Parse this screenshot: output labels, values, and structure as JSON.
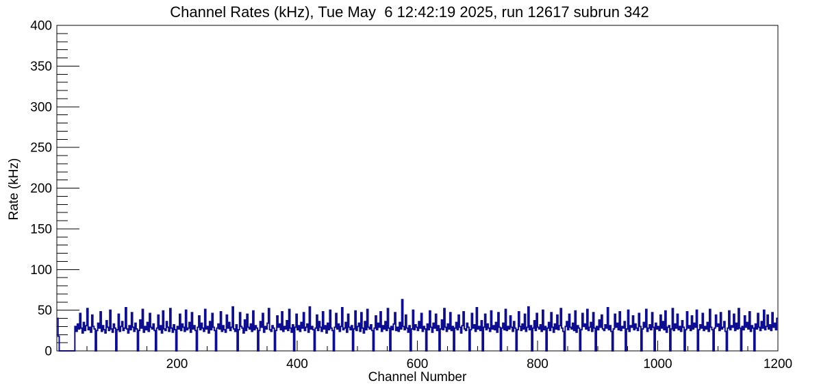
{
  "page": {
    "background": "#ffffff"
  },
  "chart_data": {
    "type": "histogram",
    "title": "Channel Rates (kHz), Tue May  6 12:42:19 2025, run 12617 subrun 342",
    "datetime": "Tue May  6 12:42:19 2025",
    "run": "12617",
    "subrun": "342",
    "xlabel": "Channel Number",
    "ylabel": "Rate (kHz)",
    "xlim": [
      0,
      1200
    ],
    "ylim": [
      0,
      400
    ],
    "x_major_ticks": [
      200,
      400,
      600,
      800,
      1000,
      1200
    ],
    "x_minor_step": 50,
    "y_major_ticks": [
      0,
      50,
      100,
      150,
      200,
      250,
      300,
      350,
      400
    ],
    "y_minor_step": 10,
    "grid": false,
    "legend_position": "none",
    "axis_color": "#000000",
    "line_color": "#0d0d94",
    "line_width": 2,
    "bin_width_channels": 2,
    "values": [
      40,
      18,
      0,
      0,
      0,
      0,
      0,
      0,
      0,
      0,
      0,
      0,
      0,
      0,
      0,
      30,
      24,
      33,
      27,
      46,
      28,
      22,
      35,
      25,
      31,
      52,
      26,
      29,
      23,
      44,
      30,
      27,
      0,
      25,
      34,
      28,
      48,
      24,
      31,
      26,
      22,
      37,
      29,
      25,
      50,
      27,
      23,
      33,
      28,
      0,
      26,
      45,
      24,
      30,
      36,
      25,
      28,
      53,
      27,
      22,
      31,
      26,
      47,
      29,
      24,
      34,
      27,
      0,
      25,
      38,
      28,
      51,
      23,
      30,
      26,
      35,
      24,
      46,
      29,
      27,
      33,
      25,
      0,
      28,
      44,
      26,
      31,
      22,
      49,
      27,
      25,
      36,
      29,
      24,
      52,
      28,
      23,
      32,
      26,
      0,
      30,
      27,
      45,
      25,
      33,
      29,
      24,
      50,
      26,
      28,
      35,
      23,
      47,
      27,
      31,
      25,
      0,
      29,
      43,
      26,
      34,
      28,
      24,
      51,
      27,
      30,
      22,
      36,
      26,
      46,
      29,
      25,
      0,
      28,
      33,
      27,
      48,
      24,
      31,
      26,
      23,
      44,
      28,
      35,
      25,
      29,
      54,
      27,
      24,
      32,
      0,
      26,
      47,
      30,
      28,
      22,
      38,
      25,
      45,
      29,
      27,
      33,
      24,
      49,
      26,
      31,
      28,
      0,
      25,
      36,
      29,
      46,
      23,
      30,
      27,
      34,
      52,
      26,
      24,
      31,
      28,
      0,
      25,
      43,
      29,
      33,
      26,
      48,
      24,
      30,
      27,
      37,
      25,
      51,
      28,
      23,
      32,
      0,
      29,
      45,
      26,
      31,
      24,
      35,
      28,
      47,
      25,
      29,
      33,
      23,
      54,
      27,
      30,
      26,
      0,
      28,
      44,
      25,
      36,
      29,
      24,
      48,
      27,
      31,
      22,
      34,
      26,
      50,
      28,
      25,
      0,
      29,
      46,
      27,
      33,
      24,
      30,
      53,
      26,
      28,
      35,
      23,
      45,
      29,
      26,
      31,
      0,
      27,
      49,
      25,
      30,
      34,
      24,
      47,
      28,
      22,
      36,
      26,
      51,
      29,
      27,
      32,
      25,
      0,
      28,
      43,
      26,
      34,
      29,
      48,
      24,
      31,
      27,
      36,
      25,
      52,
      28,
      0,
      30,
      26,
      33,
      47,
      25,
      29,
      24,
      35,
      27,
      63,
      30,
      26,
      44,
      28,
      23,
      31,
      0,
      27,
      50,
      26,
      32,
      29,
      25,
      36,
      28,
      46,
      24,
      30,
      27,
      0,
      33,
      26,
      49,
      29,
      23,
      34,
      28,
      45,
      25,
      31,
      0,
      27,
      38,
      26,
      52,
      29,
      24,
      33,
      27,
      47,
      25,
      30,
      0,
      28,
      35,
      26,
      44,
      29,
      22,
      31,
      48,
      27,
      25,
      34,
      29,
      0,
      26,
      46,
      28,
      32,
      24,
      53,
      27,
      30,
      25,
      37,
      0,
      29,
      45,
      26,
      33,
      28,
      24,
      49,
      27,
      31,
      26,
      35,
      23,
      47,
      29,
      0,
      28,
      34,
      26,
      51,
      25,
      30,
      27,
      43,
      29,
      24,
      36,
      28,
      0,
      26,
      48,
      30,
      25,
      33,
      27,
      45,
      24,
      29,
      54,
      26,
      31,
      0,
      28,
      37,
      25,
      46,
      29,
      27,
      32,
      24,
      50,
      26,
      30,
      0,
      28,
      35,
      25,
      47,
      29,
      23,
      33,
      27,
      44,
      26,
      31,
      52,
      28,
      24,
      0,
      30,
      36,
      26,
      45,
      29,
      27,
      34,
      25,
      49,
      23,
      31,
      28,
      0,
      26,
      46,
      30,
      33,
      27,
      51,
      25,
      29,
      35,
      24,
      47,
      28,
      0,
      30,
      26,
      38,
      29,
      44,
      27,
      25,
      32,
      28,
      53,
      26,
      31,
      24,
      0,
      27,
      45,
      29,
      34,
      26,
      48,
      25,
      30,
      28,
      36,
      0,
      27,
      50,
      24,
      31,
      29,
      43,
      26,
      33,
      28,
      25,
      46,
      30,
      0,
      27,
      35,
      29,
      51,
      24,
      28,
      32,
      26,
      47,
      29,
      0,
      34,
      27,
      30,
      25,
      44,
      28,
      36,
      26,
      49,
      23,
      29,
      31,
      0,
      27,
      52,
      25,
      33,
      28,
      45,
      26,
      30,
      24,
      37,
      29,
      0,
      26,
      48,
      28,
      31,
      25,
      43,
      27,
      34,
      29,
      50,
      0,
      26,
      32,
      28,
      46,
      25,
      30,
      27,
      35,
      24,
      51,
      29,
      26,
      0,
      28,
      44,
      30,
      33,
      25,
      47,
      27,
      29,
      36,
      24,
      0,
      28,
      49,
      26,
      31,
      29,
      45,
      25,
      34,
      27,
      52,
      28,
      0,
      30,
      26,
      43,
      29,
      35,
      27,
      48,
      24,
      31,
      28,
      0,
      33,
      27,
      46,
      29,
      25,
      36,
      28,
      50,
      26,
      30,
      44,
      27,
      32,
      25,
      47,
      29,
      34,
      26,
      40
    ]
  }
}
